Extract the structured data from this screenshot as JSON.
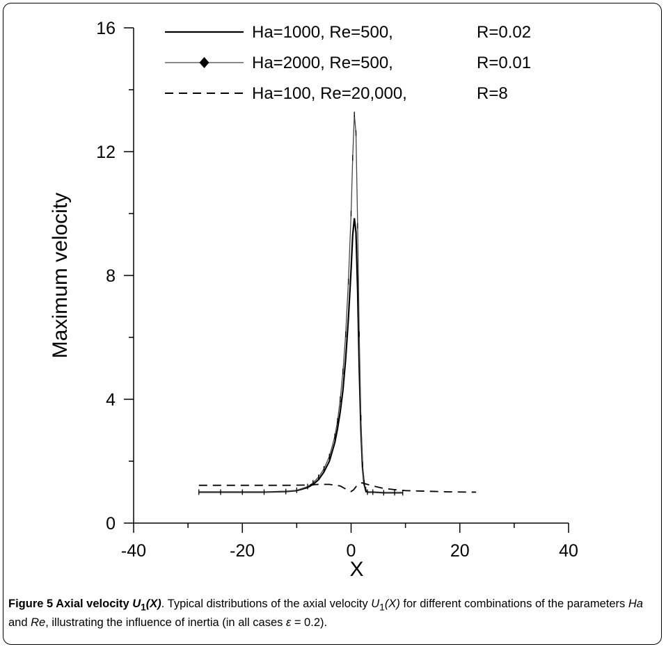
{
  "chart_data": {
    "type": "line",
    "xlabel": "X",
    "ylabel": "Maximum velocity",
    "xlim": [
      -40,
      40
    ],
    "ylim": [
      0,
      16
    ],
    "xticks": [
      -40,
      -20,
      0,
      20,
      40
    ],
    "yticks": [
      0,
      4,
      8,
      12,
      16
    ],
    "grid": false,
    "legend_position": "top",
    "series": [
      {
        "name": "Ha=1000, Re=500,",
        "param": "R=0.02",
        "style": "solid",
        "x": [
          -28,
          -24,
          -20,
          -16,
          -12,
          -10,
          -8,
          -7,
          -6,
          -5,
          -4,
          -3,
          -2.5,
          -2,
          -1.5,
          -1,
          -0.5,
          0,
          0.3,
          0.6,
          0.9,
          1.2,
          1.5,
          1.8,
          2.1,
          2.4,
          2.7,
          3,
          4,
          6,
          8,
          9.5
        ],
        "y": [
          1.0,
          1.0,
          1.0,
          1.0,
          1.02,
          1.05,
          1.15,
          1.25,
          1.4,
          1.65,
          2.0,
          2.6,
          3.05,
          3.6,
          4.3,
          5.3,
          6.6,
          8.2,
          9.3,
          9.85,
          9.4,
          7.5,
          5.0,
          3.0,
          1.8,
          1.25,
          1.05,
          1.0,
          1.0,
          0.98,
          0.98,
          0.98
        ]
      },
      {
        "name": "Ha=2000, Re=500,",
        "param": "R=0.01",
        "style": "solid-markers",
        "x": [
          -28,
          -24,
          -20,
          -16,
          -12,
          -10,
          -8,
          -7,
          -6,
          -5,
          -4,
          -3,
          -2.5,
          -2,
          -1.5,
          -1,
          -0.5,
          0,
          0.3,
          0.6,
          0.9,
          1.2,
          1.5,
          1.8,
          2.1,
          2.4,
          2.7,
          3,
          4,
          6,
          8,
          9.5
        ],
        "y": [
          1.0,
          1.0,
          1.0,
          1.0,
          1.02,
          1.06,
          1.18,
          1.3,
          1.48,
          1.75,
          2.15,
          2.8,
          3.3,
          4.0,
          4.9,
          6.1,
          7.8,
          10.0,
          11.8,
          13.2,
          12.6,
          9.6,
          6.1,
          3.4,
          1.9,
          1.3,
          1.08,
          1.0,
          1.0,
          0.98,
          0.98,
          0.98
        ]
      },
      {
        "name": "Ha=100,   Re=20,000,",
        "param": "R=8",
        "style": "dashed",
        "x": [
          -28,
          -20,
          -12,
          -8,
          -6,
          -4,
          -2,
          -1,
          0,
          0.5,
          1,
          2,
          3,
          4,
          6,
          8,
          10,
          14,
          18,
          23
        ],
        "y": [
          1.22,
          1.22,
          1.22,
          1.23,
          1.25,
          1.25,
          1.2,
          1.1,
          1.02,
          1.08,
          1.2,
          1.3,
          1.25,
          1.2,
          1.12,
          1.08,
          1.05,
          1.03,
          1.01,
          1.0
        ]
      }
    ]
  },
  "caption": {
    "label": "Figure 5 Axial velocity ",
    "label_sym": "U",
    "label_sub": "1",
    "label_arg": "(X)",
    "label_end": ". ",
    "t1": "Typical distributions of the axial velocity ",
    "t1_sym": "U",
    "t1_sub": "1",
    "t1_arg": "(X)",
    "t2": " for different combinations of the parameters ",
    "ha": "Ha",
    "and": " and ",
    "re": "Re",
    "t3": ", illustrating the influence of inertia (in all cases ",
    "eps": "ε",
    "t4": " = 0.2)."
  }
}
